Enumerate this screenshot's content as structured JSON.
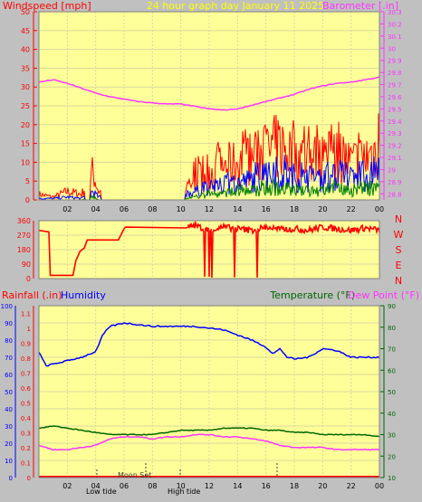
{
  "header": {
    "left_label": "Windspeed [mph]",
    "center_label": "24 hour graph day   January 11 2025",
    "right_label": "Barometer [.in]"
  },
  "panel3_header": {
    "rainfall_label": "Rainfall (.in)",
    "humidity_label": "Humidity",
    "temperature_label": "Temperature (°F)",
    "dewpoint_label": "Dew Point (°F)"
  },
  "annotations": {
    "low_tide": "Low tide",
    "moon_set": "Moon Set",
    "high_tide": "High tide"
  },
  "colors": {
    "panel_bg": "#ffff99",
    "outer_bg": "#c0c0c0",
    "grid": "#d8d8a0",
    "wind_red": "#ff0000",
    "wind_blue": "#0000ff",
    "wind_green": "#008000",
    "baro": "#ff33ff",
    "title_yellow": "#ffff00",
    "humidity": "#0000ff",
    "temperature": "#006600",
    "dewpoint": "#ff33ff",
    "rain": "#ff0000"
  },
  "chart_data": [
    {
      "type": "line",
      "name": "wind-barometer",
      "x_ticks": [
        "02",
        "04",
        "06",
        "08",
        "10",
        "12",
        "14",
        "16",
        "18",
        "20",
        "22",
        "00"
      ],
      "y_left_ticks": [
        "0",
        "5",
        "10",
        "15",
        "20",
        "25",
        "30",
        "35",
        "40",
        "45",
        "50"
      ],
      "y_left_range": [
        0,
        50
      ],
      "y_right_ticks": [
        "28.8",
        "28.9",
        "29",
        "29.1",
        "29.2",
        "29.3",
        "29.4",
        "29.5",
        "29.6",
        "29.7",
        "29.8",
        "29.9",
        "30",
        "30.1",
        "30.2",
        "30.3"
      ],
      "y_right_range": [
        28.75,
        30.3
      ],
      "x_range": [
        0,
        24
      ],
      "barometer": {
        "x": [
          0,
          1,
          2,
          3,
          4,
          5,
          6,
          7,
          8,
          9,
          10,
          11,
          12,
          13,
          14,
          15,
          16,
          17,
          18,
          19,
          20,
          21,
          22,
          23,
          24
        ],
        "values": [
          29.72,
          29.74,
          29.71,
          29.67,
          29.63,
          29.6,
          29.58,
          29.56,
          29.55,
          29.54,
          29.54,
          29.52,
          29.5,
          29.49,
          29.5,
          29.53,
          29.56,
          29.59,
          29.62,
          29.66,
          29.69,
          29.71,
          29.72,
          29.74,
          29.76
        ]
      },
      "wind_envelope": {
        "x": [
          0,
          1,
          2,
          3,
          3.8,
          4.2,
          5,
          6,
          7,
          8,
          9,
          10,
          11,
          12,
          13,
          14,
          15,
          16,
          17,
          18,
          19,
          20,
          21,
          22,
          23,
          24
        ],
        "gust": [
          2,
          1,
          3,
          2,
          10,
          3,
          2,
          1,
          1,
          0,
          0,
          3,
          8,
          10,
          12,
          13,
          15,
          17,
          19,
          16,
          15,
          14,
          16,
          13,
          15,
          18
        ],
        "average": [
          0.5,
          0.5,
          1,
          0.5,
          3,
          1,
          1,
          0.5,
          0.5,
          0,
          0,
          1,
          3,
          4,
          5,
          6,
          7,
          8,
          9,
          8,
          7,
          7,
          8,
          7,
          8,
          9
        ],
        "speed": [
          0,
          0,
          0,
          0,
          1,
          0,
          0,
          0,
          0,
          0,
          0,
          0,
          1,
          2,
          2,
          3,
          3,
          4,
          4,
          3,
          3,
          3,
          4,
          3,
          4,
          4
        ]
      }
    },
    {
      "type": "line",
      "name": "wind-direction",
      "x_ticks": [
        "02",
        "04",
        "06",
        "08",
        "10",
        "12",
        "14",
        "16",
        "18",
        "20",
        "22",
        "00"
      ],
      "y_left_ticks": [
        "0",
        "90",
        "180",
        "270",
        "360"
      ],
      "y_range": [
        0,
        360
      ],
      "compass": [
        "N",
        "W",
        "S",
        "E",
        "N"
      ],
      "x": [
        0,
        0.7,
        0.8,
        2.4,
        2.6,
        2.9,
        3.2,
        3.4,
        5.6,
        6.0,
        6.1,
        10.4,
        10.5,
        11.0,
        12.0,
        13.0,
        14.0,
        15.0,
        16.0,
        17.0,
        18.0,
        19.0,
        20.0,
        21.0,
        22.0,
        23.0,
        24.0
      ],
      "values": [
        300,
        290,
        20,
        20,
        110,
        170,
        190,
        240,
        240,
        310,
        320,
        315,
        320,
        330,
        300,
        320,
        310,
        300,
        320,
        305,
        310,
        300,
        320,
        310,
        300,
        315,
        300
      ]
    },
    {
      "type": "line",
      "name": "humidity-temperature",
      "x_ticks": [
        "02",
        "04",
        "06",
        "08",
        "10",
        "12",
        "14",
        "16",
        "18",
        "20",
        "22",
        "00"
      ],
      "y_left_outer_ticks": [
        "0",
        "10",
        "20",
        "30",
        "40",
        "50",
        "60",
        "70",
        "80",
        "90",
        "100"
      ],
      "y_left_inner_ticks": [
        "0",
        "0.1",
        "0.2",
        "0.3",
        "0.4",
        "0.5",
        "0.6",
        "0.7",
        "0.8",
        "0.9",
        "1",
        "1.1"
      ],
      "y_right_ticks": [
        "10",
        "20",
        "30",
        "40",
        "50",
        "60",
        "70",
        "80",
        "90"
      ],
      "humidity_range": [
        0,
        100
      ],
      "temp_range": [
        10,
        90
      ],
      "humidity": {
        "x": [
          0,
          0.5,
          1,
          2,
          3,
          3.6,
          4,
          4.5,
          5,
          6,
          7,
          8,
          9,
          10,
          11,
          12,
          13,
          14,
          15,
          16,
          16.5,
          17,
          17.5,
          18,
          19,
          20,
          21,
          22,
          23,
          24
        ],
        "values": [
          73,
          65,
          66,
          68,
          70,
          72,
          73,
          83,
          88,
          90,
          89,
          88,
          88,
          88,
          88,
          87,
          86,
          83,
          80,
          76,
          72,
          75,
          70,
          69,
          70,
          75,
          74,
          70,
          70,
          70
        ]
      },
      "temperature": {
        "x": [
          0,
          1,
          2,
          3,
          4,
          5,
          6,
          7,
          8,
          9,
          10,
          11,
          12,
          13,
          14,
          15,
          16,
          17,
          18,
          19,
          20,
          21,
          22,
          23,
          24
        ],
        "values": [
          33,
          34,
          33,
          32,
          31,
          30,
          30,
          30,
          30,
          31,
          32,
          32,
          32,
          33,
          33,
          33,
          32,
          32,
          31,
          31,
          30,
          30,
          30,
          30,
          29
        ]
      },
      "dewpoint": {
        "x": [
          0,
          1,
          2,
          3,
          4,
          5,
          6,
          7,
          8,
          9,
          10,
          11,
          12,
          13,
          14,
          15,
          16,
          17,
          18,
          19,
          20,
          21,
          22,
          23,
          24
        ],
        "values": [
          25,
          23,
          23,
          24,
          25,
          28,
          29,
          29,
          28,
          29,
          29,
          30,
          30,
          29,
          29,
          28,
          27,
          25,
          24,
          24,
          24,
          23,
          23,
          23,
          23
        ]
      },
      "rainfall": {
        "x": [
          0,
          24
        ],
        "values": [
          0,
          0
        ]
      }
    }
  ]
}
